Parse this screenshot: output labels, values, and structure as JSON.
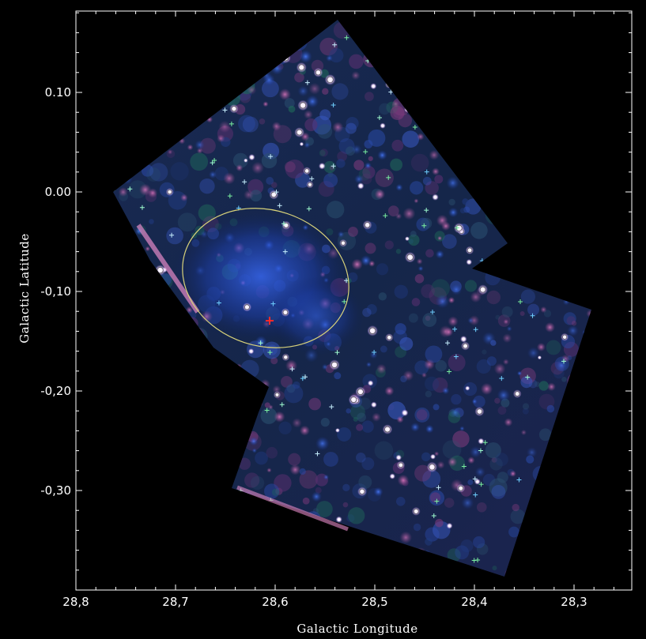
{
  "figure": {
    "xlabel": "Galactic Longitude",
    "ylabel": "Galactic Latitude",
    "xticks": [
      "28,8",
      "28,7",
      "28,6",
      "28,5",
      "28,4",
      "28,3"
    ],
    "yticks": [
      "0.10",
      "0.00",
      "-0,10",
      "-0,20",
      "-0,30"
    ],
    "frame_color": "#ffffff",
    "region_color": "#d8d27a",
    "source_marker_color": "#ff2a2a"
  }
}
